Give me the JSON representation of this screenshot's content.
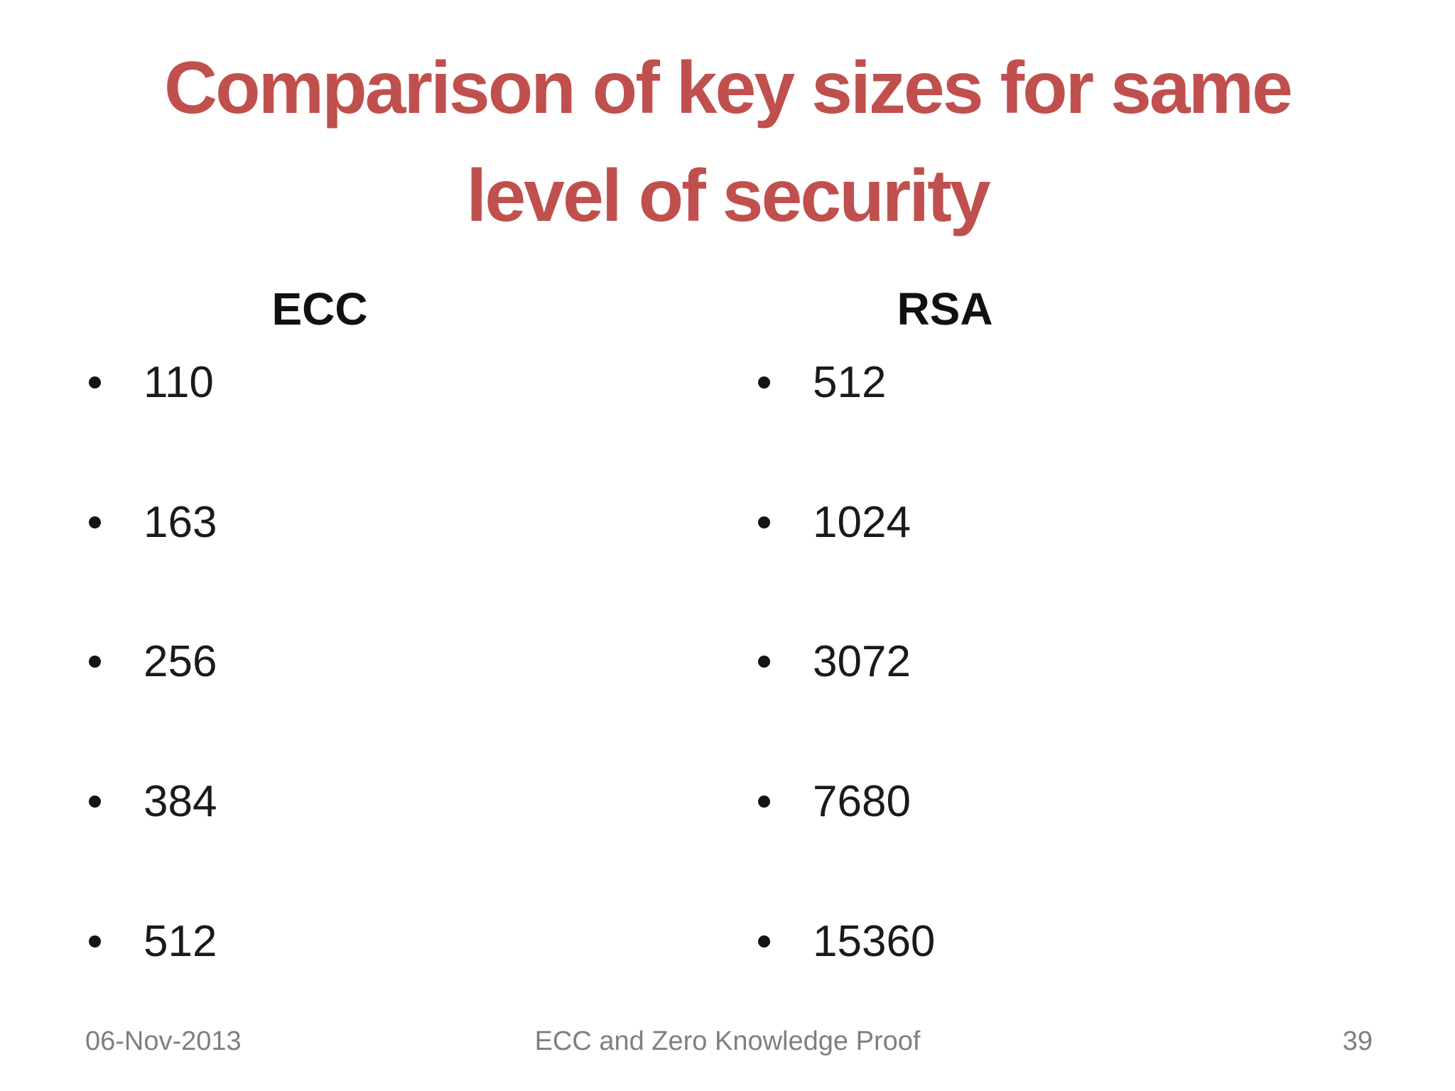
{
  "title": {
    "line1": "Comparison of key sizes for same",
    "line2": "level of security"
  },
  "columns": [
    {
      "header": "ECC",
      "items": [
        "110",
        "163",
        "256",
        "384",
        "512"
      ]
    },
    {
      "header": "RSA",
      "items": [
        "512",
        "1024",
        "3072",
        "7680",
        "15360"
      ]
    }
  ],
  "footer": {
    "date": "06-Nov-2013",
    "center": "ECC and Zero Knowledge Proof",
    "page": "39"
  },
  "colors": {
    "accent": "#C0504D",
    "body_text": "#1A1A1A",
    "footer_gray": "#7F7F7F",
    "background": "#FFFFFF"
  }
}
